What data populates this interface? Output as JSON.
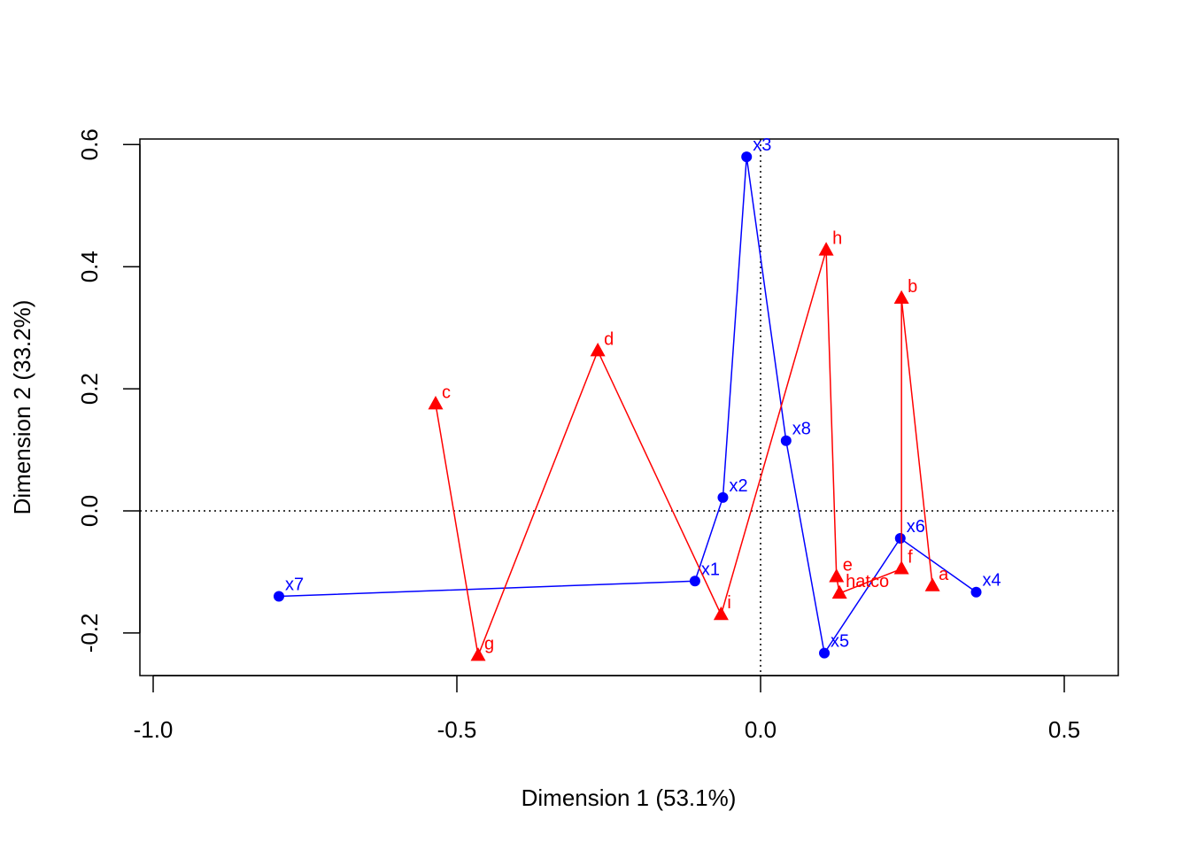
{
  "chart_data": {
    "type": "scatter",
    "title": "",
    "xlabel": "Dimension 1 (53.1%)",
    "ylabel": "Dimension 2 (33.2%)",
    "xlim": [
      -1.0,
      0.55
    ],
    "ylim": [
      -0.27,
      0.61
    ],
    "xticks": [
      {
        "value": -1.0,
        "label": "-1.0"
      },
      {
        "value": -0.5,
        "label": "-0.5"
      },
      {
        "value": 0.0,
        "label": "0.0"
      },
      {
        "value": 0.5,
        "label": "0.5"
      }
    ],
    "yticks": [
      {
        "value": -0.2,
        "label": "-0.2"
      },
      {
        "value": 0.0,
        "label": "0.0"
      },
      {
        "value": 0.2,
        "label": "0.2"
      },
      {
        "value": 0.4,
        "label": "0.4"
      },
      {
        "value": 0.6,
        "label": "0.6"
      }
    ],
    "reference_lines": {
      "x": 0,
      "y": 0,
      "style": "dotted"
    },
    "grid": false,
    "series": [
      {
        "color": "#0000ff",
        "marker": "circle",
        "connected": true,
        "points": [
          {
            "label": "x7",
            "x": -0.793,
            "y": -0.14
          },
          {
            "label": "x1",
            "x": -0.108,
            "y": -0.115
          },
          {
            "label": "x2",
            "x": -0.062,
            "y": 0.022
          },
          {
            "label": "x3",
            "x": -0.023,
            "y": 0.58
          },
          {
            "label": "x8",
            "x": 0.042,
            "y": 0.115
          },
          {
            "label": "x5",
            "x": 0.105,
            "y": -0.233
          },
          {
            "label": "x6",
            "x": 0.23,
            "y": -0.045
          },
          {
            "label": "x4",
            "x": 0.355,
            "y": -0.133
          }
        ]
      },
      {
        "color": "#ff0000",
        "marker": "triangle",
        "connected": true,
        "points": [
          {
            "label": "c",
            "x": -0.535,
            "y": 0.175
          },
          {
            "label": "g",
            "x": -0.465,
            "y": -0.237
          },
          {
            "label": "d",
            "x": -0.268,
            "y": 0.262
          },
          {
            "label": "i",
            "x": -0.065,
            "y": -0.17
          },
          {
            "label": "h",
            "x": 0.108,
            "y": 0.427
          },
          {
            "label": "e",
            "x": 0.125,
            "y": -0.108
          },
          {
            "label": "hatco",
            "x": 0.13,
            "y": -0.135
          },
          {
            "label": "f",
            "x": 0.232,
            "y": -0.095
          },
          {
            "label": "b",
            "x": 0.232,
            "y": 0.348
          },
          {
            "label": "a",
            "x": 0.283,
            "y": -0.123
          }
        ]
      }
    ]
  }
}
